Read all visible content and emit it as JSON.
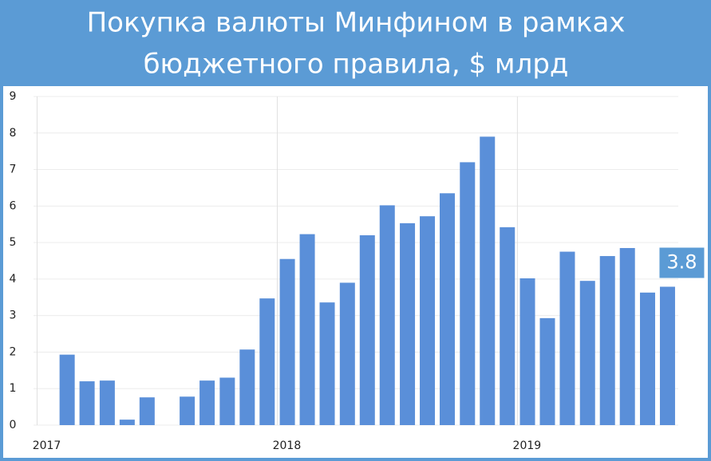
{
  "chart_data": {
    "type": "bar",
    "title": [
      "Покупка валюты Минфином в рамках",
      "бюджетного правила, $ млрд"
    ],
    "x": [
      2017.125,
      2017.208,
      2017.292,
      2017.375,
      2017.458,
      2017.625,
      2017.708,
      2017.792,
      2017.875,
      2017.958,
      2018.042,
      2018.125,
      2018.208,
      2018.292,
      2018.375,
      2018.458,
      2018.542,
      2018.625,
      2018.708,
      2018.792,
      2018.875,
      2018.958,
      2019.042,
      2019.125,
      2019.208,
      2019.292,
      2019.375,
      2019.458,
      2019.542,
      2019.625
    ],
    "values": [
      1.93,
      1.2,
      1.22,
      0.15,
      0.76,
      0.78,
      1.22,
      1.3,
      2.07,
      3.47,
      4.55,
      5.23,
      3.36,
      3.9,
      5.2,
      6.02,
      5.53,
      5.72,
      6.35,
      7.2,
      7.9,
      5.42,
      4.02,
      2.93,
      4.75,
      3.95,
      4.63,
      4.85,
      3.63,
      3.79
    ],
    "value_labels": [
      null,
      null,
      null,
      null,
      null,
      null,
      null,
      null,
      null,
      null,
      null,
      null,
      null,
      null,
      null,
      null,
      null,
      null,
      null,
      null,
      null,
      null,
      null,
      null,
      null,
      null,
      null,
      null,
      null,
      "3.8"
    ],
    "color": "#5a8fd9",
    "xlim": [
      2016.985,
      2019.67
    ],
    "xticks": [
      2017,
      2018,
      2019
    ],
    "ylim": [
      0,
      9
    ],
    "yticks": [
      0,
      1,
      2,
      3,
      4,
      5,
      6,
      7,
      8,
      9
    ],
    "grid": true
  }
}
